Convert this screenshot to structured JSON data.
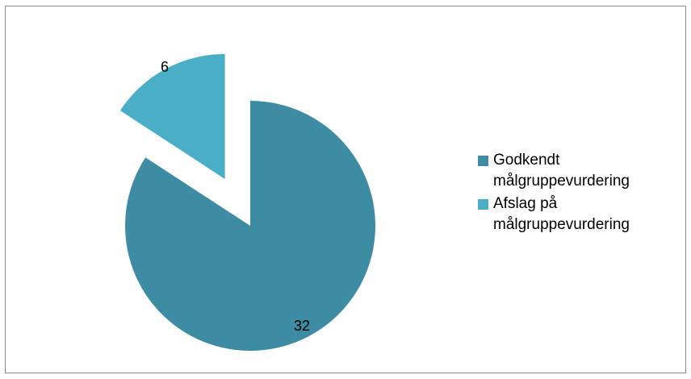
{
  "chart_data": {
    "type": "pie",
    "title": "",
    "categories": [
      "Godkendt målgruppevurdering",
      "Afslag på målgruppevurdering"
    ],
    "values": [
      32,
      6
    ],
    "colors": [
      "#3d8ca3",
      "#4aaec6"
    ],
    "data_labels": [
      "32",
      "6"
    ],
    "exploded_slice": "Afslag på målgruppevurdering",
    "legend_position": "right"
  },
  "legend": {
    "items": [
      {
        "line1": "Godkendt",
        "line2": "målgruppevurdering",
        "color": "#3d8ca3"
      },
      {
        "line1": "Afslag på",
        "line2": "målgruppevurdering",
        "color": "#4aaec6"
      }
    ]
  }
}
